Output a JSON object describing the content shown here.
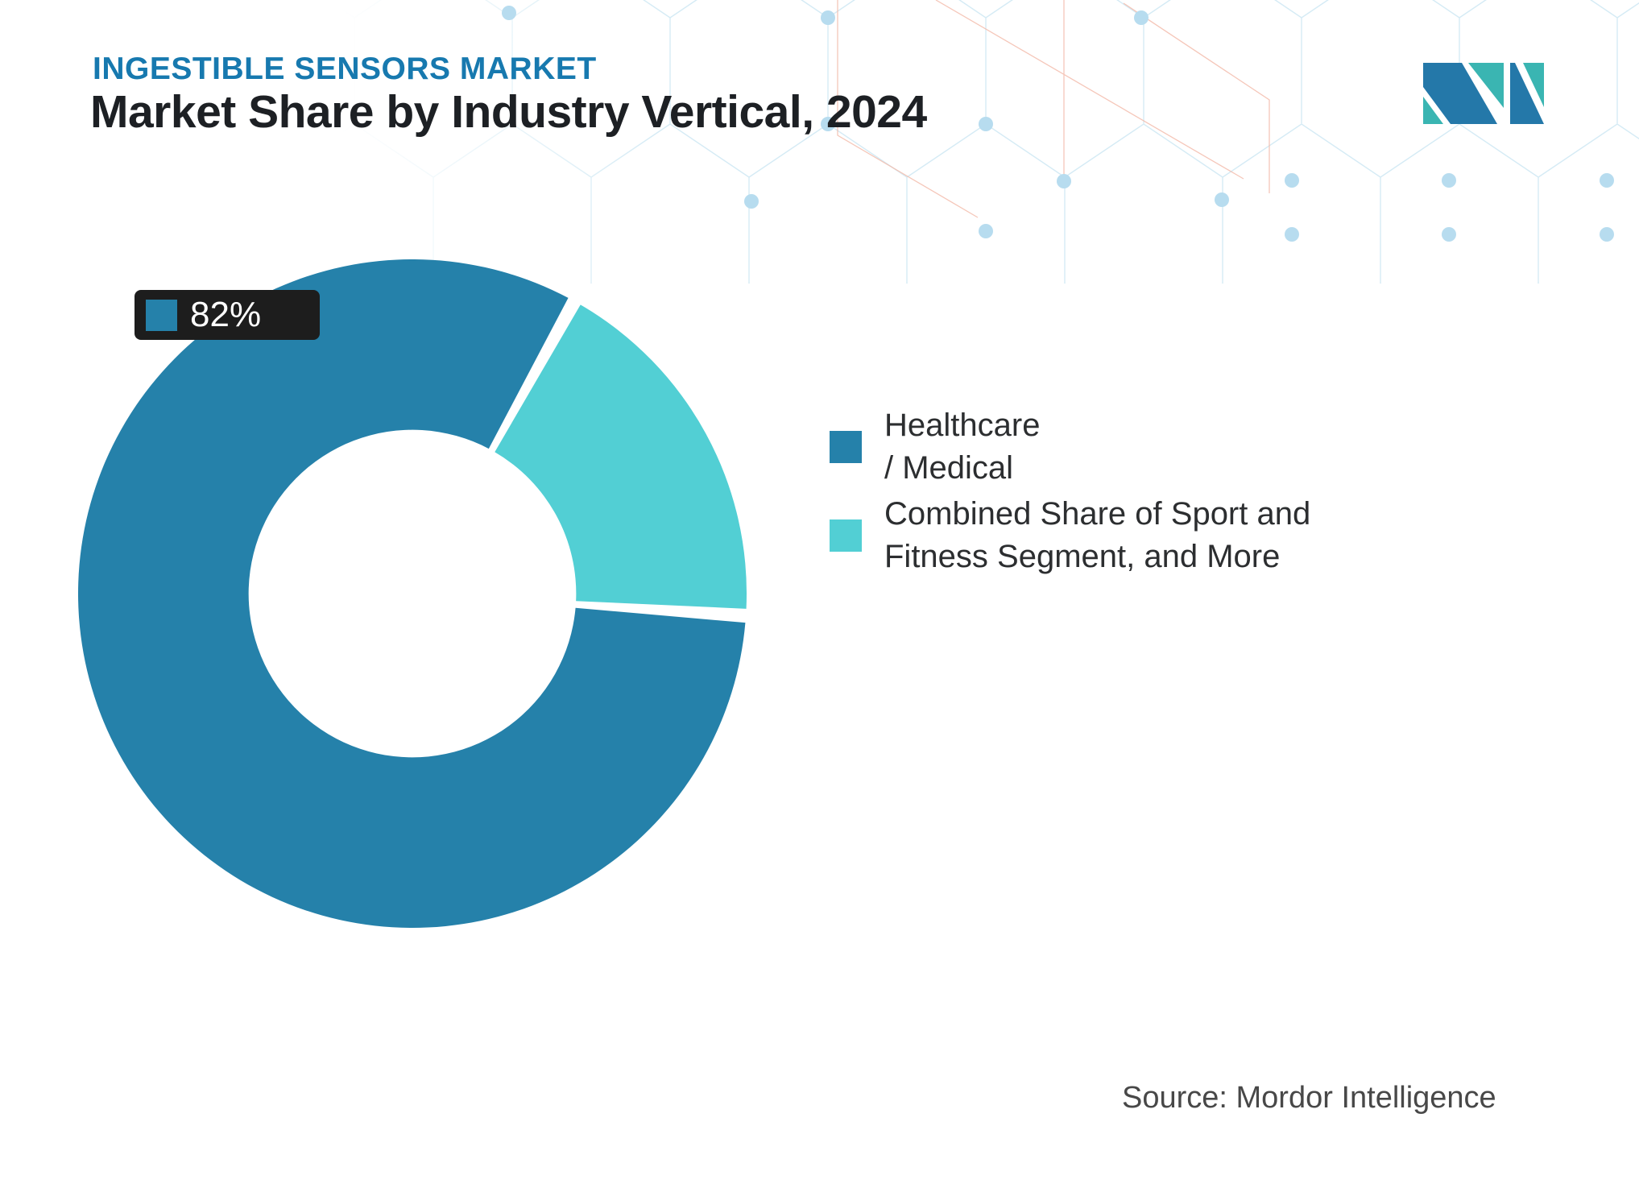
{
  "header": {
    "market_label": "INGESTIBLE SENSORS MARKET",
    "title": "Market Share by Industry Vertical, 2024"
  },
  "logo": {
    "name": "mordor-intelligence-logo",
    "blue": "#2478a9",
    "teal": "#3ab5b2"
  },
  "chart_data": {
    "type": "pie",
    "donut": true,
    "title": "Market Share by Industry Vertical, 2024",
    "categories": [
      "Healthcare / Medical",
      "Combined Share of Sport and Fitness Segment, and More"
    ],
    "values": [
      82,
      18
    ],
    "unit": "%",
    "colors": [
      "#2581AA",
      "#52CFD4"
    ],
    "data_label": {
      "text": "82%",
      "series": "Healthcare / Medical"
    },
    "legend_position": "right",
    "layout": {
      "start_angle": 93.8,
      "pad_angle": 2.4,
      "inner_radius_ratio": 0.49,
      "grid": false
    }
  },
  "legend": {
    "items": [
      {
        "label": "Healthcare / Medical",
        "color": "#2581AA"
      },
      {
        "label": "Combined Share of Sport and Fitness Segment, and More",
        "color": "#52CFD4"
      }
    ]
  },
  "footer": {
    "source": "Source: Mordor Intelligence"
  }
}
